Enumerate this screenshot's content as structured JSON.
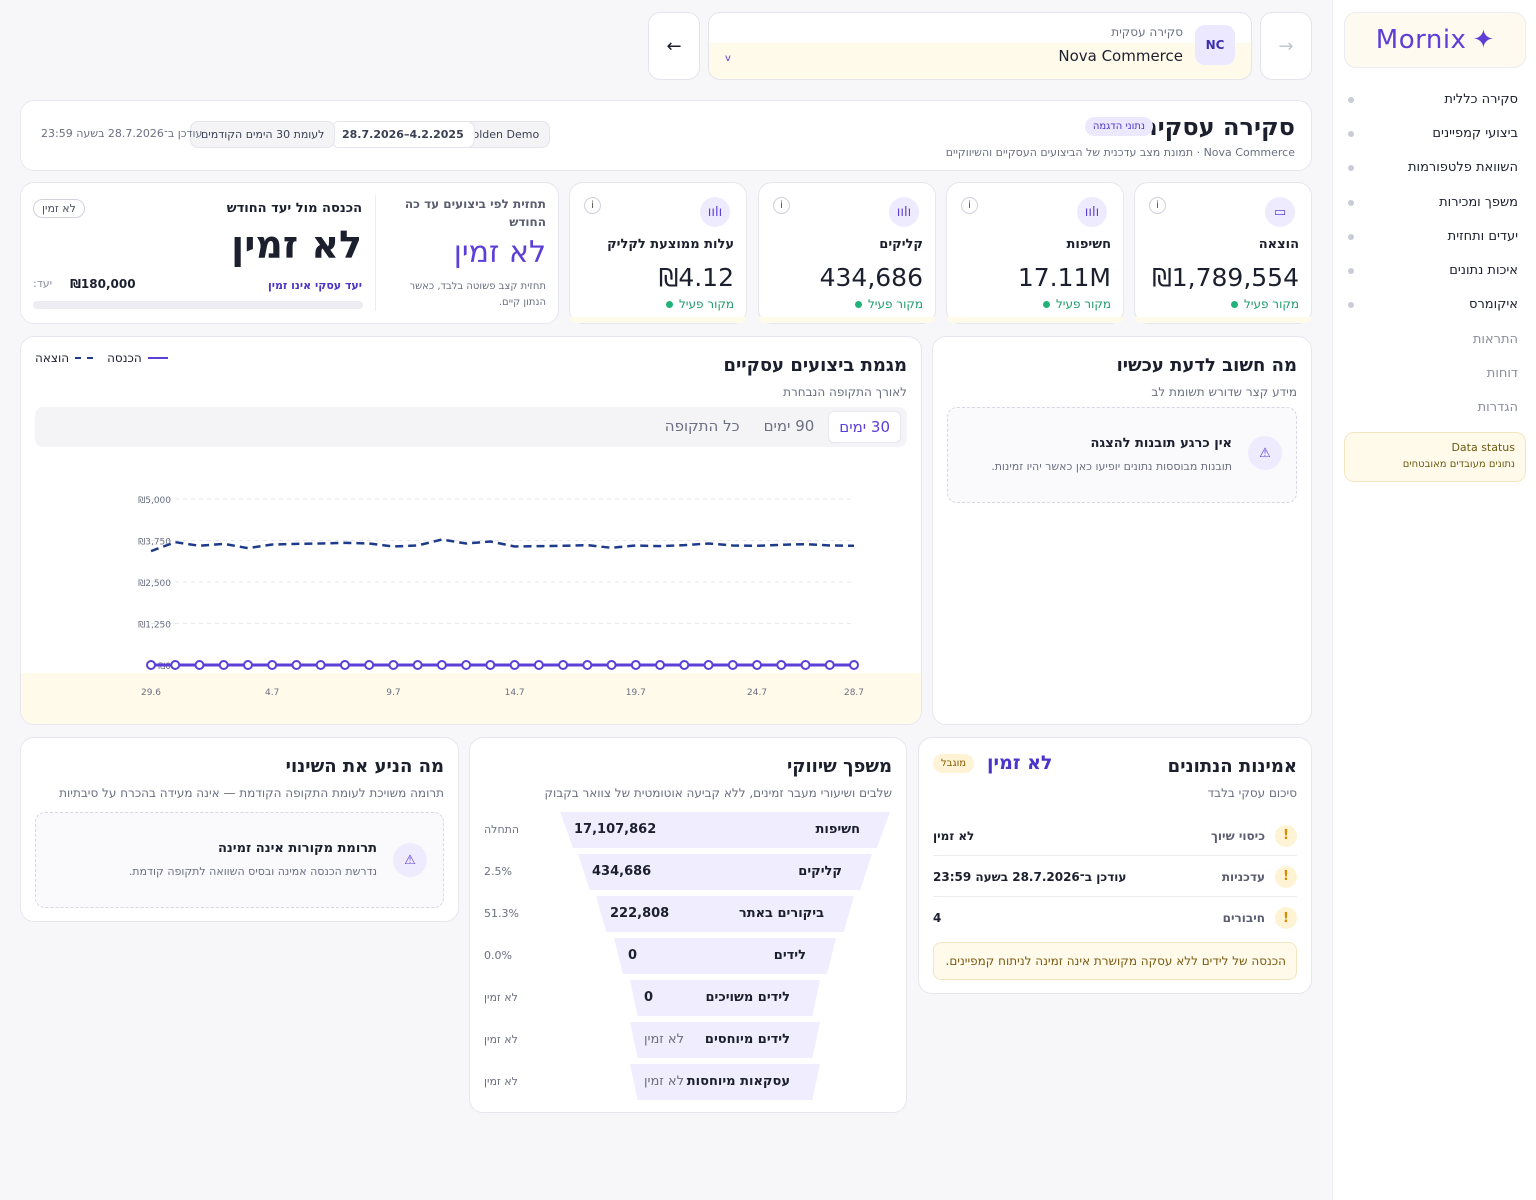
{
  "sidebar": {
    "brand": "Mornix",
    "items": [
      {
        "label": "סקירה כללית"
      },
      {
        "label": "ביצועי קמפיינים"
      },
      {
        "label": "השוואת פלטפורמות"
      },
      {
        "label": "משפך ומכירות"
      },
      {
        "label": "יעדים ותחזית"
      },
      {
        "label": "איכות נתונים"
      },
      {
        "label": "איקומרס"
      }
    ],
    "dim_items": [
      {
        "label": "התראות"
      },
      {
        "label": "דוחות"
      },
      {
        "label": "הגדרות"
      }
    ],
    "data_status": {
      "title": "Data status",
      "text": "נתונים מעובדים מאובטחים"
    }
  },
  "topbar": {
    "back_arrow": "←",
    "forward_arrow": "→",
    "account_label": "סקירה עסקית",
    "account_name": "Nova Commerce",
    "account_initials": "NC",
    "chevron": "v"
  },
  "header": {
    "title": "סקירה עסקית",
    "badge": "נתוני הדגמה",
    "subtitle": "Nova Commerce · תמונת מצב עדכנית של הביצועים העסקיים והשיווקיים",
    "chip_workspace": "Golden Demo",
    "chip_range": "4.2.2025–28.7.2026",
    "chip_compare": "לעומת 30 הימים הקודמים",
    "updated": "עודכן ב־28.7.2026 בשעה 23:59"
  },
  "kpis": [
    {
      "label": "הוצאה",
      "value": "₪1,789,554",
      "source": "מקור פעיל",
      "icon": "wallet-icon"
    },
    {
      "label": "חשיפות",
      "value": "17.11M",
      "source": "מקור פעיל",
      "icon": "bar-chart-icon"
    },
    {
      "label": "קליקים",
      "value": "434,686",
      "source": "מקור פעיל",
      "icon": "bar-chart-icon"
    },
    {
      "label": "עלות ממוצעת לקליק",
      "value": "₪4.12",
      "source": "מקור פעיל",
      "icon": "bar-chart-icon"
    }
  ],
  "target": {
    "forecast_title": "תחזית לפי ביצועים עד כה החודש",
    "forecast_value": "לא זמין",
    "forecast_note": "תחזית קצב פשוטה בלבד, כאשר הנתון קיים.",
    "title": "הכנסה מול יעד החודש",
    "value": "לא זמין",
    "badge": "לא זמין",
    "goal_note": "יעד עסקי אינו זמין",
    "goal_label": "יעד:",
    "goal_value": "₪180,000",
    "progress": 0
  },
  "now": {
    "title": "מה חשוב לדעת עכשיו",
    "sub": "מידע קצר שדורש תשומת לב",
    "empty_title": "אין כרגע תובנות להצגה",
    "empty_text": "תובנות מבוססות נתונים יופיעו כאן כאשר יהיו זמינות."
  },
  "trend": {
    "title": "מגמת ביצועים עסקיים",
    "sub": "לאורך התקופה הנבחרת",
    "tabs": [
      "30 ימים",
      "90 ימים",
      "כל התקופה"
    ],
    "active_tab": 0,
    "legend_revenue": "הכנסה",
    "legend_spend": "הוצאה"
  },
  "chart_data": {
    "type": "line",
    "x_ticks": [
      "29.6",
      "4.7",
      "9.7",
      "14.7",
      "19.7",
      "24.7",
      "28.7"
    ],
    "y_ticks": [
      "₪0",
      "₪1,250",
      "₪2,500",
      "₪3,750",
      "₪5,000"
    ],
    "ylim": [
      0,
      5000
    ],
    "grid": true,
    "legend": "top-left",
    "series": [
      {
        "name": "הכנסה",
        "style": "solid",
        "color": "#5b3fd6",
        "values": [
          0,
          0,
          0,
          0,
          0,
          0,
          0,
          0,
          0,
          0,
          0,
          0,
          0,
          0,
          0,
          0,
          0,
          0,
          0,
          0,
          0,
          0,
          0,
          0,
          0,
          0,
          0,
          0,
          0,
          0
        ]
      },
      {
        "name": "הוצאה",
        "style": "dashed",
        "color": "#1e3a8a",
        "values": [
          3430,
          3700,
          3590,
          3650,
          3520,
          3630,
          3650,
          3660,
          3680,
          3660,
          3570,
          3600,
          3780,
          3660,
          3720,
          3570,
          3580,
          3590,
          3610,
          3530,
          3600,
          3580,
          3610,
          3660,
          3600,
          3590,
          3620,
          3640,
          3600,
          3590
        ]
      }
    ]
  },
  "drivers": {
    "title": "מה הניע את השינוי",
    "sub": "תרומה משויכת לעומת התקופה הקודמת — אינה מעידה בהכרח על סיבתיות",
    "empty_title": "תרומת מקורות אינה זמינה",
    "empty_text": "נדרשת הכנסה אמינה ובסיס השוואה לתקופה קודמת."
  },
  "funnel": {
    "title": "משפך שיווקי",
    "sub": "שלבים ושיעורי מעבר זמינים, ללא קביעה אוטומטית של צוואר בקבוק",
    "rows": [
      {
        "label": "חשיפות",
        "value": "17,107,862",
        "rate": "התחלה"
      },
      {
        "label": "קליקים",
        "value": "434,686",
        "rate": "2.5%"
      },
      {
        "label": "ביקורים באתר",
        "value": "222,808",
        "rate": "51.3%"
      },
      {
        "label": "לידים",
        "value": "0",
        "rate": "0.0%"
      },
      {
        "label": "לידים משויכים",
        "value": "0",
        "rate": "לא זמין"
      },
      {
        "label": "לידים מיוחסים",
        "value": "לא זמין",
        "rate": "לא זמין"
      },
      {
        "label": "עסקאות מיוחסות",
        "value": "לא זמין",
        "rate": "לא זמין"
      }
    ]
  },
  "trust": {
    "title": "אמינות הנתונים",
    "sub": "סיכום עסקי בלבד",
    "status": "לא זמין",
    "badge": "מוגבל",
    "rows": [
      {
        "label": "כיסוי שיוך",
        "value": "לא זמין"
      },
      {
        "label": "עדכניות",
        "value": "עודכן ב־28.7.2026 בשעה 23:59"
      },
      {
        "label": "חיבורים",
        "value": "4"
      }
    ],
    "note": "הכנסה של לידים ללא עסקה מקושרת אינה זמינה לניתוח קמפיינים."
  }
}
